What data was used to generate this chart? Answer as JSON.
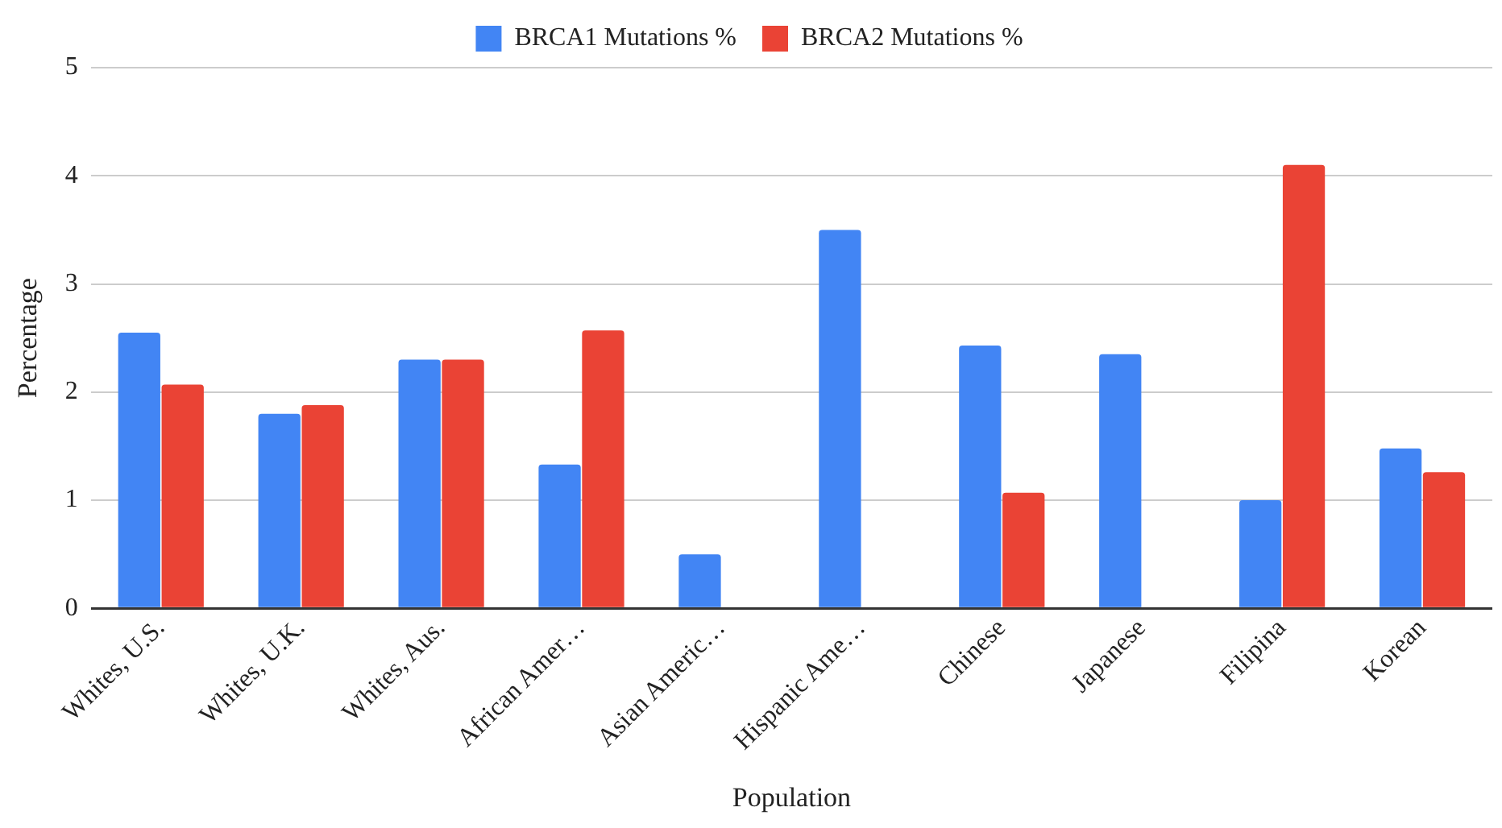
{
  "chart_data": {
    "type": "bar",
    "xlabel": "Population",
    "ylabel": "Percentage",
    "categories": [
      "Whites, U.S.",
      "Whites, U.K.",
      "Whites, Aus.",
      "African Amer…",
      "Asian Americ…",
      "Hispanic Ame…",
      "Chinese",
      "Japanese",
      "Filipina",
      "Korean"
    ],
    "series": [
      {
        "name": "BRCA1 Mutations %",
        "color": "#4285f4",
        "values": [
          2.55,
          1.8,
          2.3,
          1.33,
          0.5,
          3.5,
          2.43,
          2.35,
          1.0,
          1.48
        ]
      },
      {
        "name": "BRCA2 Mutations %",
        "color": "#ea4335",
        "values": [
          2.07,
          1.88,
          2.3,
          2.57,
          null,
          null,
          1.07,
          null,
          4.1,
          1.26
        ]
      }
    ],
    "ylim": [
      0,
      5
    ],
    "yticks": [
      0,
      1,
      2,
      3,
      4,
      5
    ],
    "grid": "y",
    "legend": "top"
  }
}
